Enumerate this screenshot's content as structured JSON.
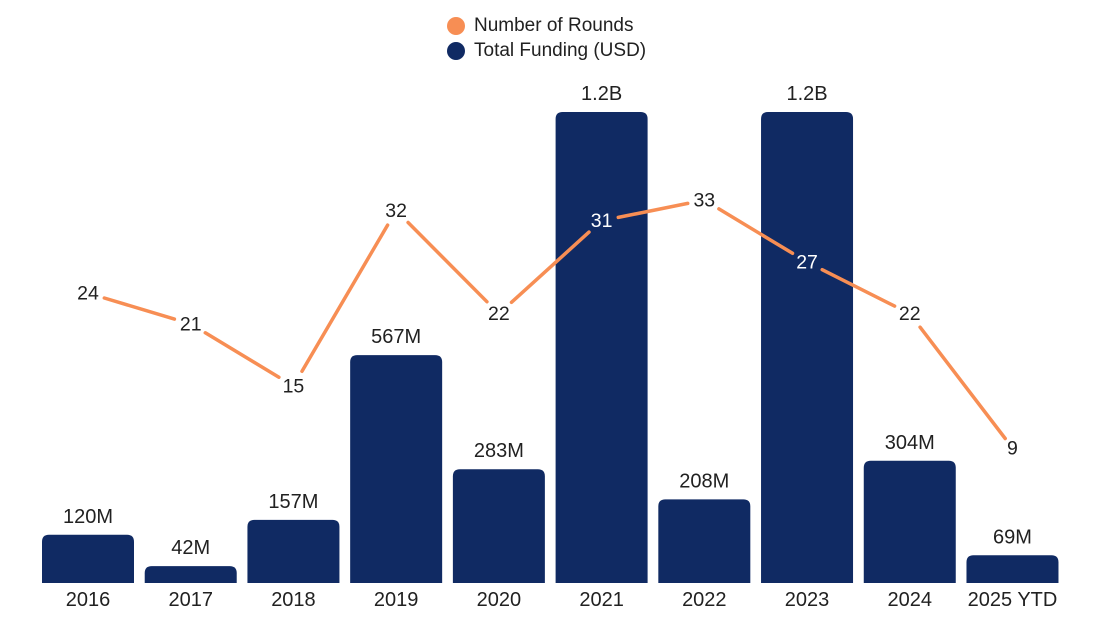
{
  "legend": {
    "items": [
      {
        "label": "Number of Rounds",
        "color": "#f78e54"
      },
      {
        "label": "Total Funding (USD)",
        "color": "#102a63"
      }
    ]
  },
  "colors": {
    "bar_navy": "#102a63",
    "line_orange": "#f78e54",
    "label_dark": "#212121",
    "label_on_bar": "#ffffff",
    "background": "#ffffff"
  },
  "chart_data": {
    "type": "combo-bar-line",
    "categories": [
      "2016",
      "2017",
      "2018",
      "2019",
      "2020",
      "2021",
      "2022",
      "2023",
      "2024",
      "2025 YTD"
    ],
    "series": [
      {
        "name": "Total Funding (USD)",
        "type": "bar",
        "color": "#102a63",
        "unit": "USD millions",
        "values": [
          120,
          42,
          157,
          567,
          283,
          1200,
          208,
          1200,
          304,
          69
        ],
        "value_labels": [
          "120M",
          "42M",
          "157M",
          "567M",
          "283M",
          "1.2B",
          "208M",
          "1.2B",
          "304M",
          "69M"
        ]
      },
      {
        "name": "Number of Rounds",
        "type": "line",
        "color": "#f78e54",
        "values": [
          24,
          21,
          15,
          32,
          22,
          31,
          33,
          27,
          22,
          9
        ]
      }
    ],
    "title": "",
    "xlabel": "",
    "ylabel": "",
    "legend_position": "top-center",
    "grid": false,
    "y_axis_shown": false,
    "x_axis_line_shown": false,
    "notes": "Bar value labels above bars; round-count labels sit on the line; labels over bars are white (2021: 31, 2023: 27)"
  }
}
